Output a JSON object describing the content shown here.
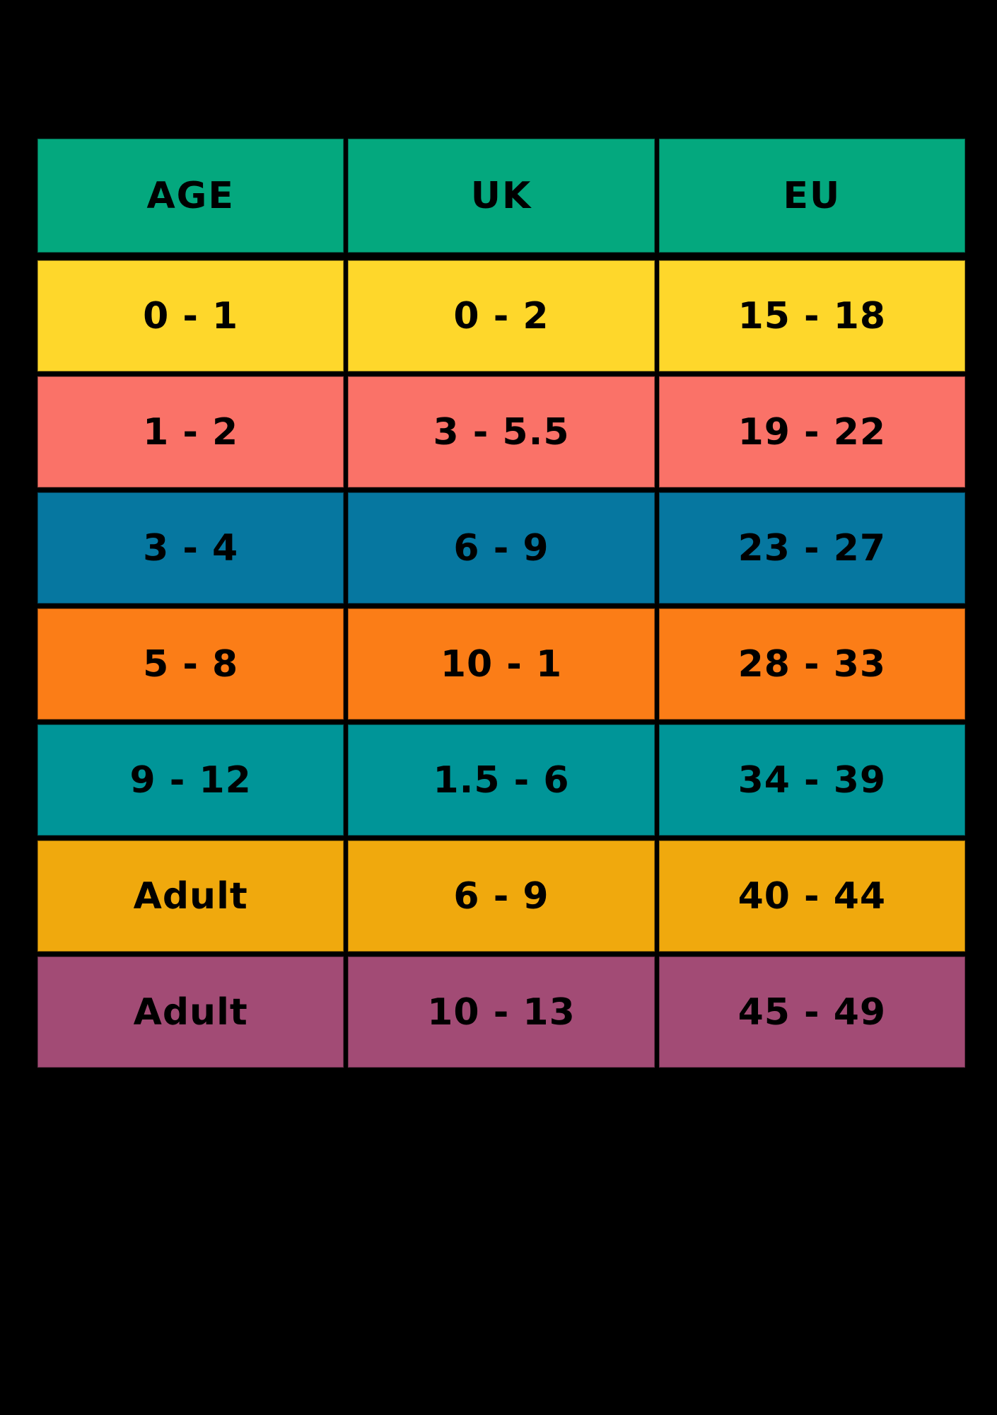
{
  "chart_data": {
    "type": "table",
    "columns": [
      "AGE",
      "UK",
      "EU"
    ],
    "rows": [
      {
        "age": "0 - 1",
        "uk": "0 - 2",
        "eu": "15 - 18"
      },
      {
        "age": "1 - 2",
        "uk": "3 - 5.5",
        "eu": "19 - 22"
      },
      {
        "age": "3 - 4",
        "uk": "6 - 9",
        "eu": "23 - 27"
      },
      {
        "age": "5 - 8",
        "uk": "10 - 1",
        "eu": "28 - 33"
      },
      {
        "age": "9 - 12",
        "uk": "1.5 - 6",
        "eu": "34 - 39"
      },
      {
        "age": "Adult",
        "uk": "6 - 9",
        "eu": "40 - 44"
      },
      {
        "age": "Adult",
        "uk": "10 - 13",
        "eu": "45 - 49"
      }
    ],
    "header_color": "#04a87e",
    "row_colors": [
      "#fed72b",
      "#fa7268",
      "#0677a0",
      "#fb7d17",
      "#009598",
      "#f0a90d",
      "#a24b75"
    ],
    "background": "#000000",
    "text_color": "#000000",
    "grid_on": true,
    "legend_position": "none"
  }
}
